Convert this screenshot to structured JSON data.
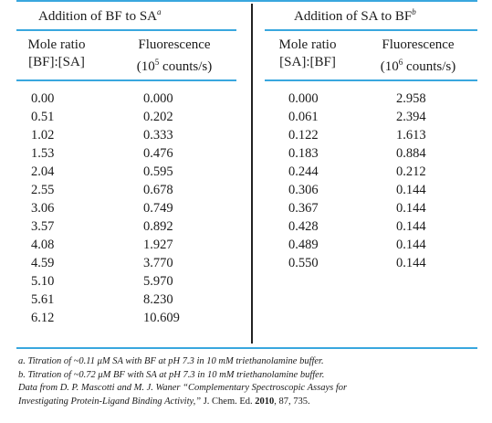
{
  "left": {
    "title": "Addition of BF to SA",
    "title_sup": "a",
    "col1_head": [
      "Mole ratio",
      "[BF]:[SA]"
    ],
    "col2_head_line1": "Fluorescence",
    "col2_head_pre": "(10",
    "col2_head_exp": "5",
    "col2_head_post": " counts/s)",
    "ratios": [
      "0.00",
      "0.51",
      "1.02",
      "1.53",
      "2.04",
      "2.55",
      "3.06",
      "3.57",
      "4.08",
      "4.59",
      "5.10",
      "5.61",
      "6.12"
    ],
    "fluor": [
      "0.000",
      "0.202",
      "0.333",
      "0.476",
      "0.595",
      "0.678",
      "0.749",
      "0.892",
      "1.927",
      "3.770",
      "5.970",
      "8.230",
      "10.609"
    ]
  },
  "right": {
    "title": "Addition of SA to BF",
    "title_sup": "b",
    "col1_head": [
      "Mole ratio",
      "[SA]:[BF]"
    ],
    "col2_head_line1": "Fluorescence",
    "col2_head_pre": "(10",
    "col2_head_exp": "6",
    "col2_head_post": " counts/s)",
    "ratios": [
      "0.000",
      "0.061",
      "0.122",
      "0.183",
      "0.244",
      "0.306",
      "0.367",
      "0.428",
      "0.489",
      "0.550"
    ],
    "fluor": [
      "2.958",
      "2.394",
      "1.613",
      "0.884",
      "0.212",
      "0.144",
      "0.144",
      "0.144",
      "0.144",
      "0.144"
    ]
  },
  "footnotes": {
    "a": "a. Titration of ~0.11 μM SA with BF at pH 7.3 in 10 mM triethanolamine buffer.",
    "b": "b. Titration of ~0.72 μM BF with SA at pH 7.3 in 10 mM triethanolamine buffer.",
    "source_pre": "Data from D. P. Mascotti and M. J. Waner “Complementary Spectroscopic Assays for",
    "source_title_end": "Investigating Protein-Ligand Binding Activity,”",
    "source_journal": " J. Chem. Ed. ",
    "source_year": "2010",
    "source_tail": ", 87, 735."
  }
}
